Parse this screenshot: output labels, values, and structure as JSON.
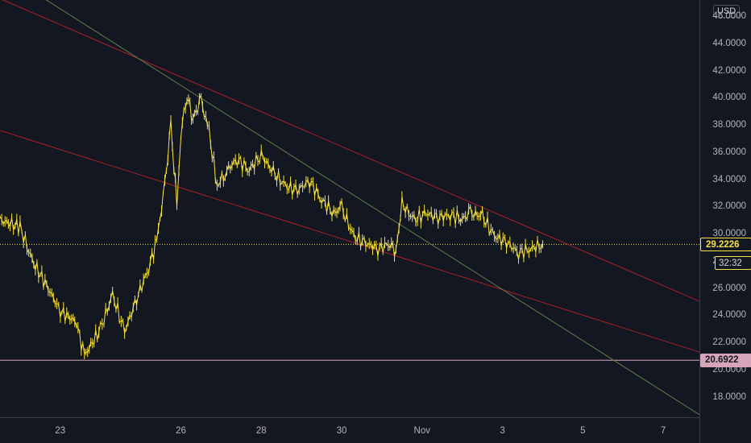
{
  "currency": "USD",
  "price_axis": {
    "ticks": [
      "46.0000",
      "44.0000",
      "42.0000",
      "40.0000",
      "38.0000",
      "36.0000",
      "34.0000",
      "32.0000",
      "30.0000",
      "28.0000",
      "26.0000",
      "24.0000",
      "22.0000",
      "20.0000",
      "18.0000"
    ],
    "tick_values": [
      46,
      44,
      42,
      40,
      38,
      36,
      34,
      32,
      30,
      28,
      26,
      24,
      22,
      20,
      18
    ]
  },
  "time_axis": {
    "labels": [
      "23",
      "26",
      "28",
      "30",
      "Nov",
      "3",
      "5",
      "7"
    ],
    "label_days": [
      23,
      26,
      28,
      30,
      32,
      34,
      36,
      38
    ]
  },
  "current_price": {
    "label": "29.2226",
    "value": 29.2226,
    "color": "#f7e33f"
  },
  "countdown": {
    "label": "32:32"
  },
  "support": {
    "label": "20.6922",
    "value": 20.6922,
    "color": "#d6a5ba"
  },
  "colors": {
    "background": "#131722",
    "candles": "#f7e33f",
    "trend_red": "#a8202a",
    "trend_green": "#5f7d4a"
  },
  "chart_data": {
    "type": "line",
    "x_unit": "days (Oct 22 = 22, Nov 1 = 32)",
    "x": [
      21.5,
      22,
      22.3,
      22.7,
      23,
      23.4,
      23.6,
      24,
      24.3,
      24.6,
      24.9,
      25.2,
      25.4,
      25.6,
      25.75,
      25.9,
      26,
      26.15,
      26.3,
      26.5,
      26.7,
      26.9,
      27.1,
      27.4,
      27.7,
      28,
      28.3,
      28.6,
      28.9,
      29.2,
      29.5,
      29.8,
      30,
      30.3,
      30.6,
      30.9,
      31.2,
      31.35,
      31.5,
      31.8,
      32.1,
      32.4,
      32.7,
      33,
      33.2,
      33.5,
      33.8,
      34.1,
      34.4,
      34.7,
      35
    ],
    "y": [
      31,
      30.5,
      28,
      26,
      24.3,
      23.5,
      21,
      23,
      25.5,
      22.8,
      25.2,
      27.5,
      29.5,
      33.5,
      38,
      32,
      37.5,
      40.2,
      38.5,
      39.8,
      37.5,
      33.5,
      34.5,
      35.5,
      34.7,
      35.8,
      34.5,
      33.5,
      33.2,
      33.9,
      32.5,
      31.5,
      31.9,
      29.8,
      29.3,
      28.9,
      29.3,
      28.7,
      32.2,
      31,
      31.5,
      31.2,
      31.4,
      31.1,
      31.5,
      31.3,
      29.8,
      29.4,
      28.6,
      28.9,
      29.2226
    ],
    "ylim": [
      16.5,
      47.2
    ],
    "xlim": [
      21.5,
      38.9
    ],
    "trend_lines": [
      {
        "color": "#a8202a",
        "points": [
          [
            21.5,
            47.3
          ],
          [
            39,
            24.9
          ]
        ]
      },
      {
        "color": "#a8202a",
        "points": [
          [
            21.5,
            37.6
          ],
          [
            39,
            21.2
          ]
        ]
      },
      {
        "color": "#5f7d4a",
        "points": [
          [
            22.6,
            47.3
          ],
          [
            39,
            16.5
          ]
        ]
      }
    ],
    "horizontal_lines": [
      {
        "value": 29.2226,
        "color": "#f7e33f",
        "style": "dotted"
      },
      {
        "value": 20.6922,
        "color": "#d6a5ba",
        "style": "solid"
      }
    ]
  }
}
